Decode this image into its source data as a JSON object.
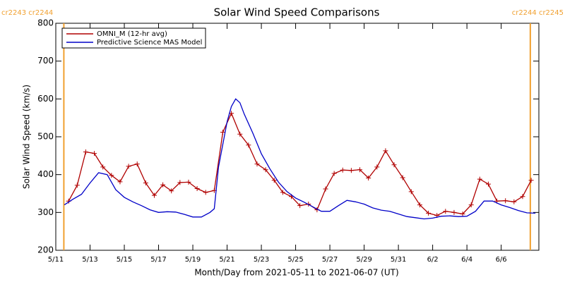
{
  "chart_data": {
    "type": "line",
    "title": "Solar Wind Speed Comparisons",
    "xlabel": "Month/Day from 2021-05-11 to 2021-06-07 (UT)",
    "ylabel": "Solar Wind Speed (km/s)",
    "xlim": [
      0,
      28.2
    ],
    "ylim": [
      200,
      800
    ],
    "xticks": [
      {
        "value": 0,
        "label": "5/11"
      },
      {
        "value": 2,
        "label": "5/13"
      },
      {
        "value": 4,
        "label": "5/15"
      },
      {
        "value": 6,
        "label": "5/17"
      },
      {
        "value": 8,
        "label": "5/19"
      },
      {
        "value": 10,
        "label": "5/21"
      },
      {
        "value": 12,
        "label": "5/23"
      },
      {
        "value": 14,
        "label": "5/25"
      },
      {
        "value": 16,
        "label": "5/27"
      },
      {
        "value": 18,
        "label": "5/29"
      },
      {
        "value": 20,
        "label": "5/31"
      },
      {
        "value": 22,
        "label": "6/2"
      },
      {
        "value": 24,
        "label": "6/4"
      },
      {
        "value": 26,
        "label": "6/6"
      }
    ],
    "yticks": [
      200,
      300,
      400,
      500,
      600,
      700,
      800
    ],
    "vlines": [
      {
        "x": 0.47,
        "label": "cr2243 cr2244",
        "color": "#f0a030"
      },
      {
        "x": 27.7,
        "label": "cr2244 cr2245",
        "color": "#f0a030"
      }
    ],
    "series": [
      {
        "name": "OMNI_M (12-hr avg)",
        "color": "#b00000",
        "marker": "+",
        "x": [
          0.75,
          1.25,
          1.75,
          2.25,
          2.75,
          3.25,
          3.75,
          4.25,
          4.75,
          5.25,
          5.75,
          6.25,
          6.75,
          7.25,
          7.75,
          8.25,
          8.75,
          9.25,
          9.75,
          10.25,
          10.75,
          11.25,
          11.75,
          12.25,
          12.75,
          13.25,
          13.75,
          14.25,
          14.75,
          15.25,
          15.75,
          16.25,
          16.75,
          17.25,
          17.75,
          18.25,
          18.75,
          19.25,
          19.75,
          20.25,
          20.75,
          21.25,
          21.75,
          22.25,
          22.75,
          23.25,
          23.75,
          24.25,
          24.75,
          25.25,
          25.75,
          26.25,
          26.75,
          27.25,
          27.75
        ],
        "values": [
          330,
          372,
          460,
          456,
          420,
          398,
          381,
          422,
          428,
          378,
          345,
          373,
          357,
          379,
          380,
          363,
          353,
          358,
          512,
          562,
          507,
          478,
          428,
          413,
          385,
          353,
          342,
          318,
          322,
          307,
          362,
          403,
          412,
          411,
          413,
          391,
          420,
          463,
          426,
          392,
          355,
          320,
          298,
          292,
          303,
          300,
          296,
          320,
          388,
          375,
          330,
          331,
          328,
          342,
          385
        ]
      },
      {
        "name": "Predictive Science MAS Model",
        "color": "#0000c8",
        "x": [
          0.5,
          1,
          1.5,
          2,
          2.5,
          3,
          3.5,
          4,
          4.5,
          5,
          5.5,
          6,
          6.5,
          7,
          7.5,
          8,
          8.5,
          9,
          9.25,
          9.5,
          10,
          10.25,
          10.5,
          10.75,
          11,
          11.5,
          12,
          12.5,
          13,
          13.5,
          14,
          14.5,
          15,
          15.5,
          16,
          16.5,
          17,
          17.5,
          18,
          18.5,
          19,
          19.5,
          20,
          20.5,
          21,
          21.5,
          22,
          22.5,
          23,
          23.5,
          24,
          24.5,
          25,
          25.5,
          26,
          26.5,
          27,
          27.5,
          28
        ],
        "values": [
          320,
          335,
          348,
          378,
          405,
          400,
          360,
          340,
          328,
          318,
          307,
          300,
          302,
          301,
          295,
          288,
          288,
          300,
          310,
          420,
          540,
          580,
          600,
          590,
          560,
          510,
          455,
          415,
          380,
          355,
          338,
          327,
          315,
          303,
          303,
          318,
          332,
          328,
          322,
          312,
          306,
          303,
          296,
          289,
          286,
          283,
          285,
          290,
          291,
          289,
          290,
          303,
          330,
          330,
          320,
          313,
          305,
          299,
          298
        ]
      }
    ]
  }
}
